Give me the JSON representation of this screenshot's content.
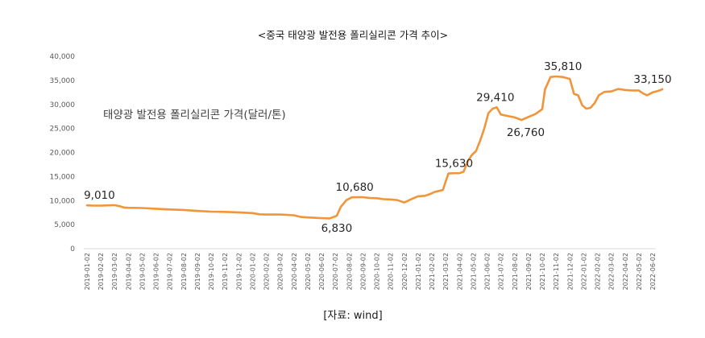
{
  "chart_data": {
    "type": "line",
    "title": "<중국 태양광 발전용 폴리실리콘 가격 추이>",
    "series_label": "태양광 발전용 폴리실리콘 가격(달러/톤)",
    "source": "[자료: wind]",
    "ylim": [
      0,
      40000
    ],
    "y_ticks": [
      "0",
      "5,000",
      "10,000",
      "15,000",
      "20,000",
      "25,000",
      "30,000",
      "35,000",
      "40,000"
    ],
    "y_tick_values": [
      0,
      5000,
      10000,
      15000,
      20000,
      25000,
      30000,
      35000,
      40000
    ],
    "categories": [
      "2019-01-02",
      "2019-02-02",
      "2019-03-02",
      "2019-04-02",
      "2019-05-02",
      "2019-06-02",
      "2019-07-02",
      "2019-08-02",
      "2019-09-02",
      "2019-10-02",
      "2019-11-02",
      "2019-12-02",
      "2020-01-02",
      "2020-02-02",
      "2020-03-02",
      "2020-04-02",
      "2020-05-02",
      "2020-06-02",
      "2020-07-02",
      "2020-08-02",
      "2020-09-02",
      "2020-10-02",
      "2020-11-02",
      "2020-12-02",
      "2021-01-02",
      "2021-02-02",
      "2021-03-02",
      "2021-04-02",
      "2021-05-02",
      "2021-06-02",
      "2021-07-02",
      "2021-08-02",
      "2021-09-02",
      "2021-10-02",
      "2021-11-02",
      "2021-12-02",
      "2022-01-02",
      "2022-02-02",
      "2022-03-02",
      "2022-04-02",
      "2022-05-02",
      "2022-06-02"
    ],
    "series": [
      {
        "name": "태양광 발전용 폴리실리콘 가격(달러/톤)",
        "color": "#f0953a",
        "points": [
          [
            0,
            9010
          ],
          [
            0.5,
            8950
          ],
          [
            1,
            8950
          ],
          [
            1.5,
            9000
          ],
          [
            2,
            9050
          ],
          [
            2.4,
            8800
          ],
          [
            2.7,
            8550
          ],
          [
            3,
            8500
          ],
          [
            4,
            8450
          ],
          [
            5,
            8300
          ],
          [
            6,
            8150
          ],
          [
            7,
            8050
          ],
          [
            8,
            7850
          ],
          [
            9,
            7700
          ],
          [
            10,
            7650
          ],
          [
            11,
            7550
          ],
          [
            12,
            7400
          ],
          [
            12.5,
            7150
          ],
          [
            13,
            7100
          ],
          [
            14,
            7100
          ],
          [
            15,
            6950
          ],
          [
            15.5,
            6600
          ],
          [
            16,
            6500
          ],
          [
            17,
            6350
          ],
          [
            17.6,
            6300
          ],
          [
            18.1,
            6830
          ],
          [
            18.4,
            8700
          ],
          [
            18.8,
            10100
          ],
          [
            19.2,
            10680
          ],
          [
            19.6,
            10700
          ],
          [
            20,
            10700
          ],
          [
            20.5,
            10550
          ],
          [
            21,
            10500
          ],
          [
            21.5,
            10300
          ],
          [
            22,
            10250
          ],
          [
            22.5,
            10100
          ],
          [
            23,
            9600
          ],
          [
            23.5,
            10300
          ],
          [
            24,
            10900
          ],
          [
            24.5,
            11000
          ],
          [
            24.9,
            11400
          ],
          [
            25.2,
            11800
          ],
          [
            25.5,
            12000
          ],
          [
            25.8,
            12200
          ],
          [
            26,
            14000
          ],
          [
            26.2,
            15630
          ],
          [
            26.6,
            15700
          ],
          [
            27,
            15700
          ],
          [
            27.3,
            16000
          ],
          [
            27.6,
            18200
          ],
          [
            27.9,
            19500
          ],
          [
            28.2,
            20300
          ],
          [
            28.5,
            22500
          ],
          [
            28.8,
            25000
          ],
          [
            29.1,
            28200
          ],
          [
            29.4,
            29100
          ],
          [
            29.7,
            29410
          ],
          [
            30,
            27900
          ],
          [
            30.5,
            27600
          ],
          [
            31,
            27300
          ],
          [
            31.5,
            26760
          ],
          [
            32,
            27400
          ],
          [
            32.5,
            28000
          ],
          [
            33,
            29000
          ],
          [
            33.2,
            33100
          ],
          [
            33.6,
            35700
          ],
          [
            34,
            35810
          ],
          [
            34.5,
            35700
          ],
          [
            35,
            35300
          ],
          [
            35.3,
            32200
          ],
          [
            35.6,
            31900
          ],
          [
            35.9,
            29800
          ],
          [
            36.2,
            29100
          ],
          [
            36.5,
            29300
          ],
          [
            36.8,
            30300
          ],
          [
            37.1,
            31900
          ],
          [
            37.5,
            32600
          ],
          [
            38,
            32700
          ],
          [
            38.5,
            33200
          ],
          [
            39,
            33000
          ],
          [
            39.5,
            32900
          ],
          [
            40,
            32900
          ],
          [
            40.3,
            32300
          ],
          [
            40.6,
            31900
          ],
          [
            41,
            32500
          ],
          [
            41.4,
            32800
          ],
          [
            41.7,
            33150
          ]
        ]
      }
    ],
    "data_labels": [
      {
        "text": "9,010",
        "x": 0.9,
        "y": 9010,
        "anchor": "middle",
        "offset": "above"
      },
      {
        "text": "6,830",
        "x": 18.1,
        "y": 6830,
        "anchor": "middle",
        "offset": "below"
      },
      {
        "text": "10,680",
        "x": 19.4,
        "y": 10680,
        "anchor": "middle",
        "offset": "above"
      },
      {
        "text": "15,630",
        "x": 26.6,
        "y": 15630,
        "anchor": "middle",
        "offset": "above"
      },
      {
        "text": "29,410",
        "x": 29.6,
        "y": 29410,
        "anchor": "middle",
        "offset": "above"
      },
      {
        "text": "26,760",
        "x": 31.8,
        "y": 26760,
        "anchor": "middle",
        "offset": "below"
      },
      {
        "text": "35,810",
        "x": 34.5,
        "y": 35810,
        "anchor": "middle",
        "offset": "above"
      },
      {
        "text": "33,150",
        "x": 41.0,
        "y": 33150,
        "anchor": "middle",
        "offset": "above"
      }
    ],
    "grid": false,
    "legend": "none"
  }
}
